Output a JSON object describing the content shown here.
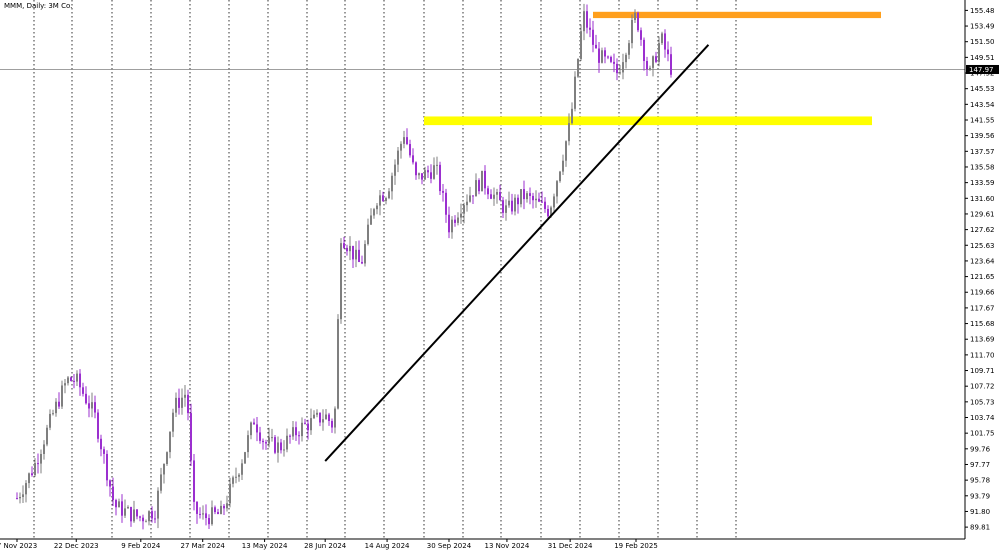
{
  "window": {
    "title": "MMM, Daily: 3M Co."
  },
  "price_tag": {
    "value": "147.97"
  },
  "colors": {
    "background": "#ffffff",
    "axis": "#000000",
    "grid": "#000000",
    "bull": "#7f7f7f",
    "bear": "#9b2fcf",
    "support_zone": "#ffff00",
    "resistance_zone": "#ff9f1c",
    "trendline": "#000000",
    "price_line": "#7f7f7f"
  },
  "chart_data": {
    "type": "line",
    "symbol": "MMM",
    "timeframe": "Daily",
    "company": "3M Co.",
    "y_axis": {
      "position": "right",
      "ticks": [
        "155.48",
        "153.49",
        "151.50",
        "149.51",
        "147.52",
        "145.53",
        "143.54",
        "141.55",
        "139.56",
        "137.57",
        "135.58",
        "133.59",
        "131.60",
        "129.61",
        "127.62",
        "125.63",
        "123.64",
        "121.65",
        "119.66",
        "117.67",
        "115.68",
        "113.69",
        "111.70",
        "109.71",
        "107.72",
        "105.73",
        "103.74",
        "101.75",
        "99.76",
        "97.77",
        "95.78",
        "93.79",
        "91.80",
        "89.81"
      ],
      "ylim": [
        88.3,
        156.8
      ]
    },
    "x_axis": {
      "ticks": [
        "7 Nov 2023",
        "22 Dec 2023",
        "9 Feb 2024",
        "27 Mar 2024",
        "13 May 2024",
        "28 Jun 2024",
        "14 Aug 2024",
        "30 Sep 2024",
        "13 Nov 2024",
        "31 Dec 2024",
        "19 Feb 2025"
      ],
      "grid": "dotted-vertical"
    },
    "series": [
      {
        "values_x": [
          "2023-11-07",
          "2023-11-20",
          "2023-12-05",
          "2023-12-15",
          "2023-12-22",
          "2024-01-05",
          "2024-01-20",
          "2024-02-01",
          "2024-02-09",
          "2024-02-20",
          "2024-03-05",
          "2024-03-15",
          "2024-03-20",
          "2024-03-27",
          "2024-04-10",
          "2024-04-25",
          "2024-05-05",
          "2024-05-13",
          "2024-05-25",
          "2024-06-10",
          "2024-06-28",
          "2024-07-05",
          "2024-07-10",
          "2024-07-25",
          "2024-08-05",
          "2024-08-14",
          "2024-08-27",
          "2024-09-05",
          "2024-09-20",
          "2024-09-30",
          "2024-10-10",
          "2024-10-25",
          "2024-11-05",
          "2024-11-13",
          "2024-11-25",
          "2024-12-05",
          "2024-12-15",
          "2024-12-31",
          "2025-01-10",
          "2025-01-20",
          "2025-02-05",
          "2025-02-19",
          "2025-03-01",
          "2025-03-10",
          "2025-03-18"
        ],
        "values_y": [
          93.5,
          97.5,
          104.5,
          108.5,
          108.5,
          104.0,
          92.5,
          91.5,
          91.0,
          92.0,
          105.0,
          107.0,
          92.0,
          91.0,
          91.5,
          98.0,
          103.5,
          100.5,
          100.0,
          102.5,
          104.0,
          102.5,
          127.0,
          123.0,
          131.5,
          132.5,
          140.0,
          134.0,
          135.5,
          128.0,
          131.0,
          134.0,
          131.5,
          130.0,
          132.0,
          131.0,
          130.0,
          141.0,
          155.0,
          150.0,
          147.5,
          155.0,
          147.0,
          152.0,
          147.97
        ]
      }
    ],
    "annotations": {
      "support_zone": {
        "from": 140.9,
        "to": 142.0
      },
      "resistance_zone": {
        "from": 154.5,
        "to": 155.3
      },
      "trendline": {
        "from": {
          "date": "2024-06-28",
          "price": 98.2
        },
        "to": {
          "date": "2025-04-15",
          "price": 151.1
        }
      },
      "last_price": 147.97
    }
  }
}
